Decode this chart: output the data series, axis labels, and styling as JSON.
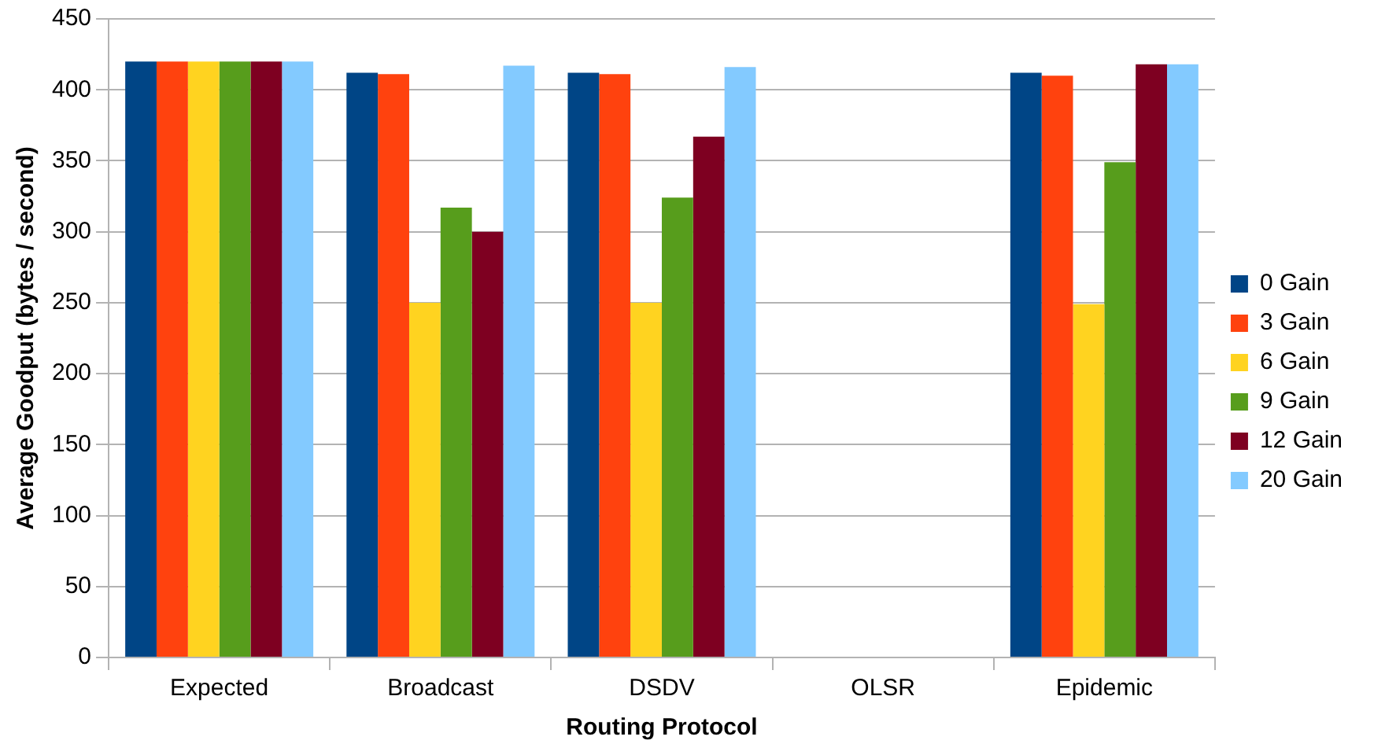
{
  "chart_data": {
    "type": "bar",
    "xlabel": "Routing Protocol",
    "ylabel": "Average Goodput (bytes / second)",
    "categories": [
      "Expected",
      "Broadcast",
      "DSDV",
      "OLSR",
      "Epidemic"
    ],
    "series": [
      {
        "name": "0 Gain",
        "color": "#004586",
        "values": [
          420,
          412,
          412,
          0,
          412
        ]
      },
      {
        "name": "3 Gain",
        "color": "#ff420e",
        "values": [
          420,
          411,
          411,
          0,
          410
        ]
      },
      {
        "name": "6 Gain",
        "color": "#ffd320",
        "values": [
          420,
          250,
          250,
          0,
          249
        ]
      },
      {
        "name": "9 Gain",
        "color": "#579d1c",
        "values": [
          420,
          317,
          324,
          0,
          349
        ]
      },
      {
        "name": "12 Gain",
        "color": "#7e0021",
        "values": [
          420,
          300,
          367,
          0,
          418
        ]
      },
      {
        "name": "20 Gain",
        "color": "#83caff",
        "values": [
          420,
          417,
          416,
          0,
          418
        ]
      }
    ],
    "ylim": [
      0,
      450
    ],
    "yticks": [
      0,
      50,
      100,
      150,
      200,
      250,
      300,
      350,
      400,
      450
    ],
    "grid": "y",
    "legend": "right"
  }
}
